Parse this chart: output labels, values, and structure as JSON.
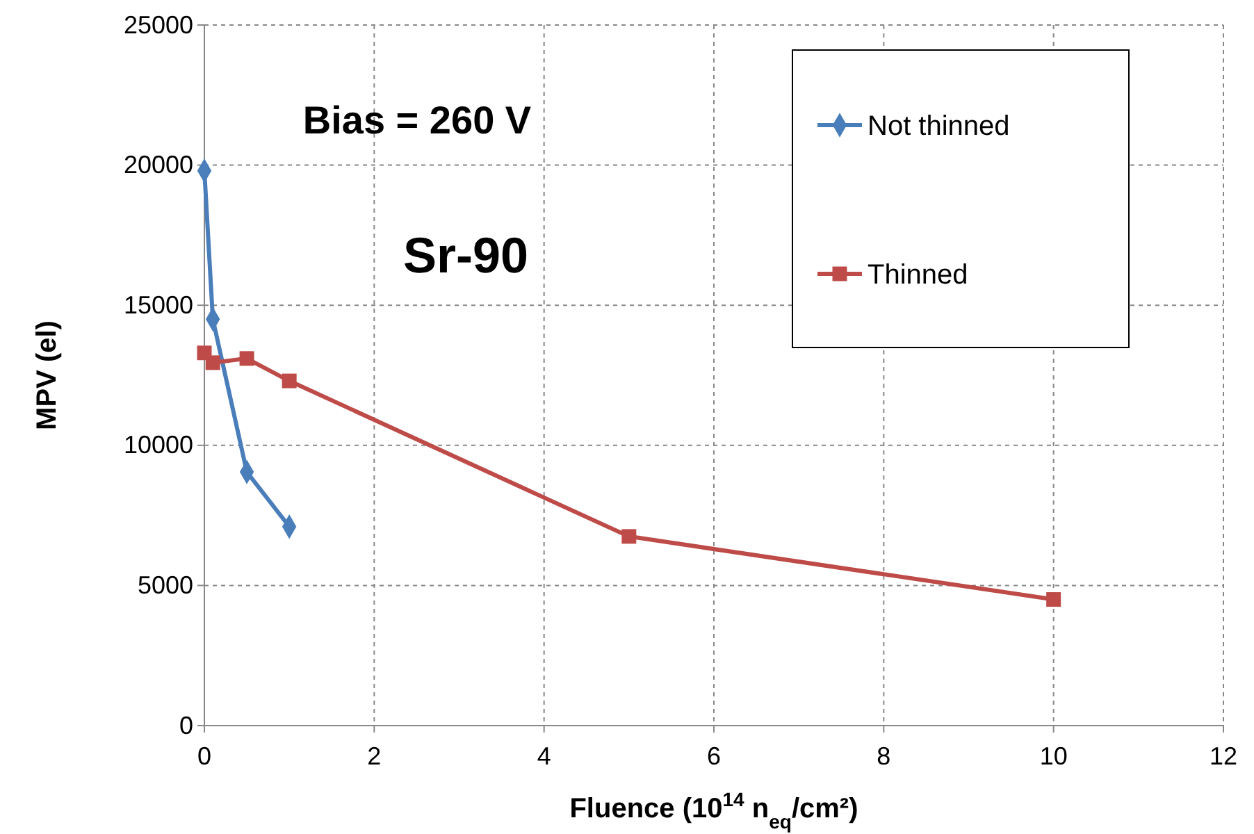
{
  "chart_data": {
    "type": "line",
    "xlabel": "Fluence (10$^{14}$ n$_{eq}$/cm²)",
    "ylabel": "MPV (el)",
    "annotations": [
      "Bias = 260 V",
      "Sr-90"
    ],
    "series": [
      {
        "name": "Not thinned",
        "color": "#4a7ebb",
        "marker": "diamond",
        "x": [
          0,
          0.1,
          0.5,
          1
        ],
        "values": [
          19800,
          14500,
          9050,
          7100
        ]
      },
      {
        "name": "Thinned",
        "color": "#be4b48",
        "marker": "square",
        "x": [
          0,
          0.1,
          0.5,
          1,
          5,
          10
        ],
        "values": [
          13300,
          12950,
          13100,
          12300,
          6750,
          4500
        ]
      }
    ],
    "xlim": [
      0,
      12
    ],
    "xticks": [
      0,
      2,
      4,
      6,
      8,
      10,
      12
    ],
    "ylim": [
      0,
      25000
    ],
    "yticks": [
      0,
      5000,
      10000,
      15000,
      20000,
      25000
    ],
    "grid": true,
    "legend": "top right",
    "line_style": "solid"
  }
}
